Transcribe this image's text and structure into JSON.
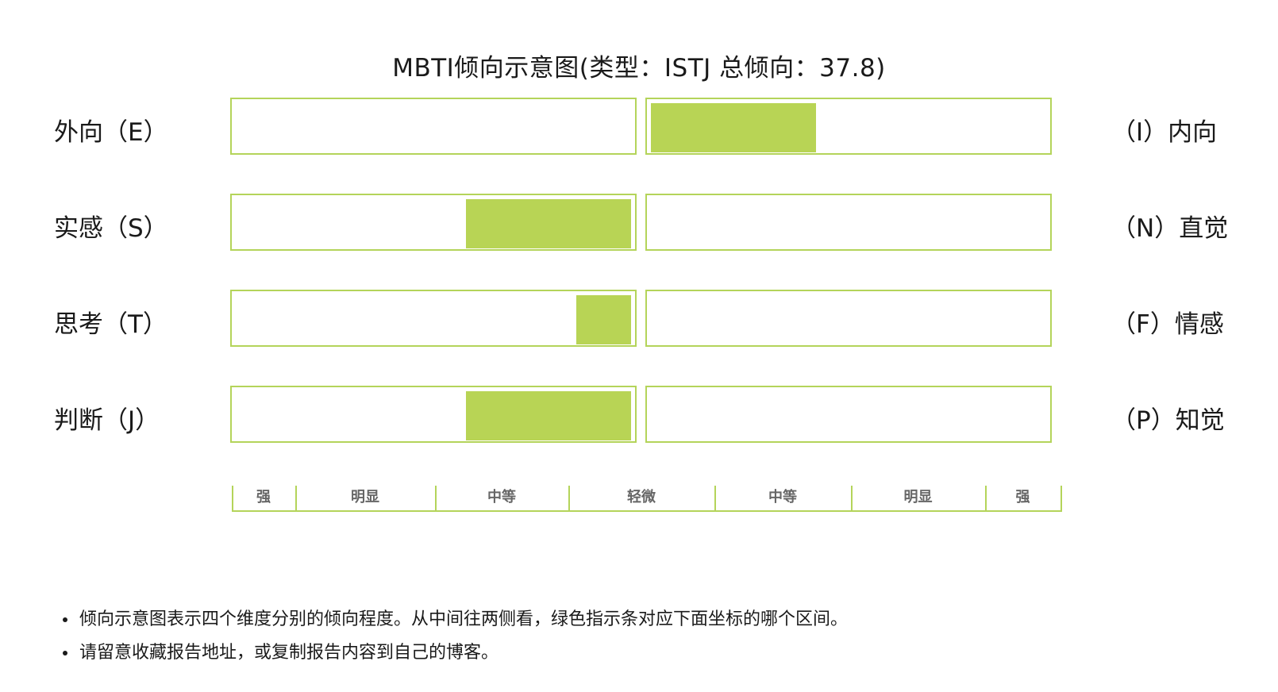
{
  "chart_data": {
    "type": "bar",
    "title": "MBTI倾向示意图(类型：ISTJ 总倾向：37.8)",
    "rows": [
      {
        "left": "外向（E）",
        "right": "（I）内向",
        "side": "right",
        "value": 42
      },
      {
        "left": "实感（S）",
        "right": "（N）直觉",
        "side": "left",
        "value": 42
      },
      {
        "left": "思考（T）",
        "right": "（F）情感",
        "side": "left",
        "value": 14
      },
      {
        "left": "判断（J）",
        "right": "（P）知觉",
        "side": "left",
        "value": 42
      }
    ],
    "scale_labels": [
      "强",
      "明显",
      "中等",
      "轻微",
      "中等",
      "明显",
      "强"
    ],
    "bar_color": "#b8d455",
    "border_color": "#b4d45a"
  },
  "notes": [
    "倾向示意图表示四个维度分别的倾向程度。从中间往两侧看，绿色指示条对应下面坐标的哪个区间。",
    "请留意收藏报告地址，或复制报告内容到自己的博客。"
  ]
}
